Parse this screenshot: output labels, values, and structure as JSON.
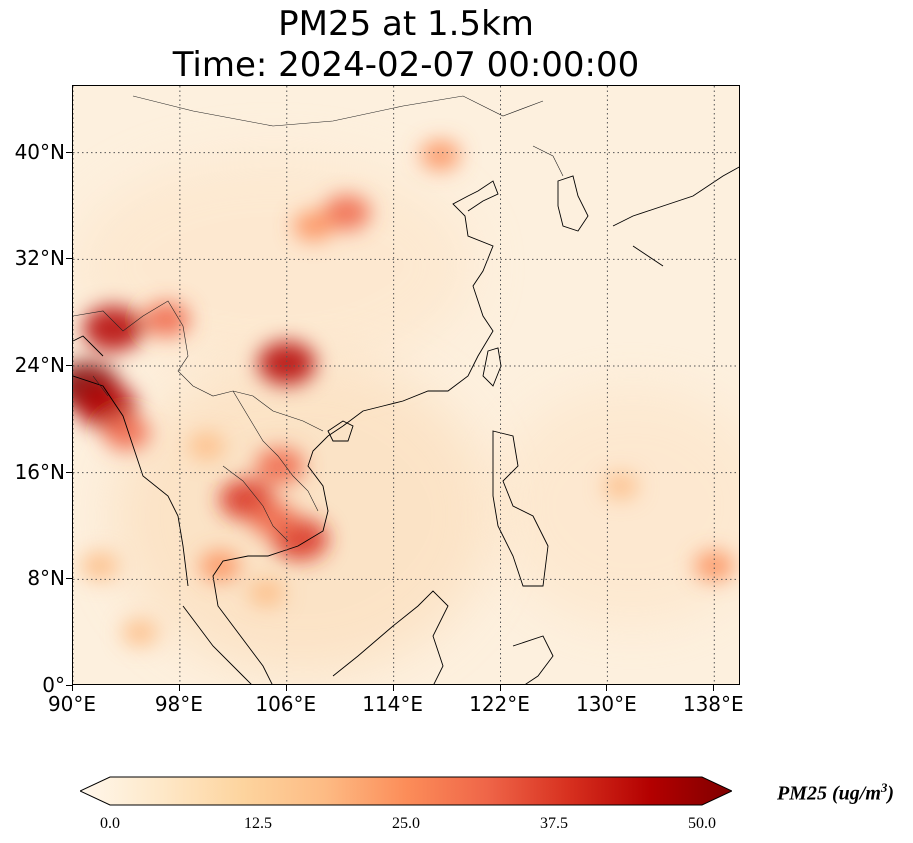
{
  "title": {
    "line1": "PM25 at 1.5km",
    "line2": "Time: 2024-02-07 00:00:00"
  },
  "map": {
    "projection": "PlateCarree",
    "lon_range": [
      90,
      140
    ],
    "lat_range": [
      0,
      45
    ],
    "grid": "dotted",
    "lat_ticks": [
      {
        "value": 0,
        "label": "0°"
      },
      {
        "value": 8,
        "label": "8°N"
      },
      {
        "value": 16,
        "label": "16°N"
      },
      {
        "value": 24,
        "label": "24°N"
      },
      {
        "value": 32,
        "label": "32°N"
      },
      {
        "value": 40,
        "label": "40°N"
      }
    ],
    "lon_ticks": [
      {
        "value": 90,
        "label": "90°E"
      },
      {
        "value": 98,
        "label": "98°E"
      },
      {
        "value": 106,
        "label": "106°E"
      },
      {
        "value": 114,
        "label": "114°E"
      },
      {
        "value": 122,
        "label": "122°E"
      },
      {
        "value": 130,
        "label": "130°E"
      },
      {
        "value": 138,
        "label": "138°E"
      }
    ],
    "hotspots": [
      {
        "lon": 91,
        "lat": 22.5,
        "value": 50
      },
      {
        "lon": 92.5,
        "lat": 21,
        "value": 45
      },
      {
        "lon": 93,
        "lat": 26.8,
        "value": 45
      },
      {
        "lon": 97,
        "lat": 27.5,
        "value": 30
      },
      {
        "lon": 94,
        "lat": 19,
        "value": 30
      },
      {
        "lon": 106,
        "lat": 24.2,
        "value": 42
      },
      {
        "lon": 110.5,
        "lat": 35.5,
        "value": 30
      },
      {
        "lon": 108,
        "lat": 34.5,
        "value": 22
      },
      {
        "lon": 117.5,
        "lat": 39.8,
        "value": 22
      },
      {
        "lon": 103,
        "lat": 14,
        "value": 38
      },
      {
        "lon": 105.5,
        "lat": 16.5,
        "value": 32
      },
      {
        "lon": 107,
        "lat": 11,
        "value": 40
      },
      {
        "lon": 105,
        "lat": 12.5,
        "value": 30
      },
      {
        "lon": 101,
        "lat": 9,
        "value": 22
      },
      {
        "lon": 104.5,
        "lat": 7,
        "value": 18
      },
      {
        "lon": 100,
        "lat": 18,
        "value": 18
      },
      {
        "lon": 138,
        "lat": 9,
        "value": 22
      },
      {
        "lon": 131,
        "lat": 15,
        "value": 16
      },
      {
        "lon": 92,
        "lat": 9,
        "value": 20
      },
      {
        "lon": 95,
        "lat": 4,
        "value": 18
      }
    ]
  },
  "colorbar": {
    "title": "PM25 (ug/m",
    "title_sup": "3",
    "title_close": ")",
    "min": 0,
    "max": 50,
    "ticks": [
      "0.0",
      "12.5",
      "25.0",
      "37.5",
      "50.0"
    ],
    "cmap": "OrRd",
    "extend": "both",
    "colors": [
      "#fff7ec",
      "#fee8c8",
      "#fdd49e",
      "#fdbb84",
      "#fc8d59",
      "#ef6548",
      "#d7301f",
      "#b30000",
      "#7f0000"
    ]
  }
}
